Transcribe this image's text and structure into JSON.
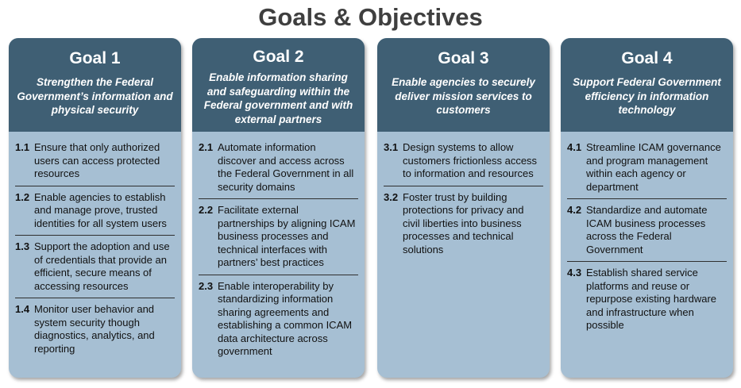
{
  "title": "Goals & Objectives",
  "goals": [
    {
      "title": "Goal 1",
      "description": "Strengthen the Federal Government’s information and physical security",
      "objectives": [
        {
          "num": "1.1",
          "text": "Ensure that only authorized users can access protected resources"
        },
        {
          "num": "1.2",
          "text": "Enable agencies to establish and manage prove, trusted identities for all system users"
        },
        {
          "num": "1.3",
          "text": "Support the adoption and use of credentials that provide an efficient, secure means of accessing resources"
        },
        {
          "num": "1.4",
          "text": "Monitor user behavior and system security though diagnostics, analytics, and reporting"
        }
      ]
    },
    {
      "title": "Goal 2",
      "description": "Enable information sharing and safeguarding within the Federal government and with external partners",
      "objectives": [
        {
          "num": "2.1",
          "text": "Automate information discover and access across the Federal Government in all security domains"
        },
        {
          "num": "2.2",
          "text": "Facilitate external partnerships by aligning ICAM business processes and technical interfaces with partners’ best practices"
        },
        {
          "num": "2.3",
          "text": "Enable interoperability by standardizing information sharing agreements and establishing a common ICAM data architecture across government"
        }
      ]
    },
    {
      "title": "Goal 3",
      "description": "Enable agencies to securely deliver mission services to customers",
      "objectives": [
        {
          "num": "3.1",
          "text": "Design systems to allow customers frictionless access to information and resources"
        },
        {
          "num": "3.2",
          "text": "Foster trust by building protections for privacy and civil liberties into business processes and technical solutions"
        }
      ]
    },
    {
      "title": "Goal 4",
      "description": "Support Federal Government efficiency in information technology",
      "objectives": [
        {
          "num": "4.1",
          "text": "Streamline ICAM governance and program management within each agency or department"
        },
        {
          "num": "4.2",
          "text": "Standardize and automate ICAM business processes across the Federal Government"
        },
        {
          "num": "4.3",
          "text": "Establish shared service platforms and reuse or repurpose existing hardware and infrastructure when possible"
        }
      ]
    }
  ]
}
